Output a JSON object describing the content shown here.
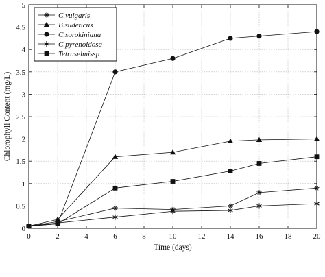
{
  "chart_data": {
    "type": "line",
    "title": "",
    "xlabel": "Time (days)",
    "ylabel": "Chlorophyll Content (mg/L)",
    "xlim": [
      0,
      20
    ],
    "ylim": [
      0,
      5
    ],
    "xticks": [
      0,
      2,
      4,
      6,
      8,
      10,
      12,
      14,
      16,
      18,
      20
    ],
    "yticks": [
      0,
      0.5,
      1,
      1.5,
      2,
      2.5,
      3,
      3.5,
      4,
      4.5,
      5
    ],
    "xtick_labels": [
      "0",
      "2",
      "4",
      "6",
      "8",
      "10",
      "12",
      "14",
      "16",
      "18",
      "20"
    ],
    "ytick_labels": [
      "0",
      "0.5",
      "1",
      "1.5",
      "2",
      "2.5",
      "3",
      "3.5",
      "4",
      "4.5",
      "5"
    ],
    "grid": true,
    "legend_position": "top-left",
    "x": [
      0,
      2,
      6,
      10,
      14,
      16,
      20
    ],
    "series": [
      {
        "name": "C.vulgaris",
        "marker": "star-thin",
        "values": [
          0.05,
          0.15,
          0.45,
          0.42,
          0.5,
          0.8,
          0.9
        ]
      },
      {
        "name": "B.sudeticus",
        "marker": "triangle",
        "values": [
          0.05,
          0.2,
          1.6,
          1.7,
          1.95,
          1.98,
          2.0
        ]
      },
      {
        "name": "C.sorokiniana",
        "marker": "circle",
        "values": [
          0.05,
          0.1,
          3.5,
          3.8,
          4.25,
          4.3,
          4.4
        ]
      },
      {
        "name": "C.pyrenoidosa",
        "marker": "asterisk",
        "values": [
          0.05,
          0.12,
          0.25,
          0.38,
          0.4,
          0.5,
          0.55
        ]
      },
      {
        "name": "Tetraselmissp",
        "marker": "square",
        "values": [
          0.05,
          0.1,
          0.9,
          1.05,
          1.28,
          1.45,
          1.6
        ]
      }
    ],
    "line_color": "#111111"
  }
}
